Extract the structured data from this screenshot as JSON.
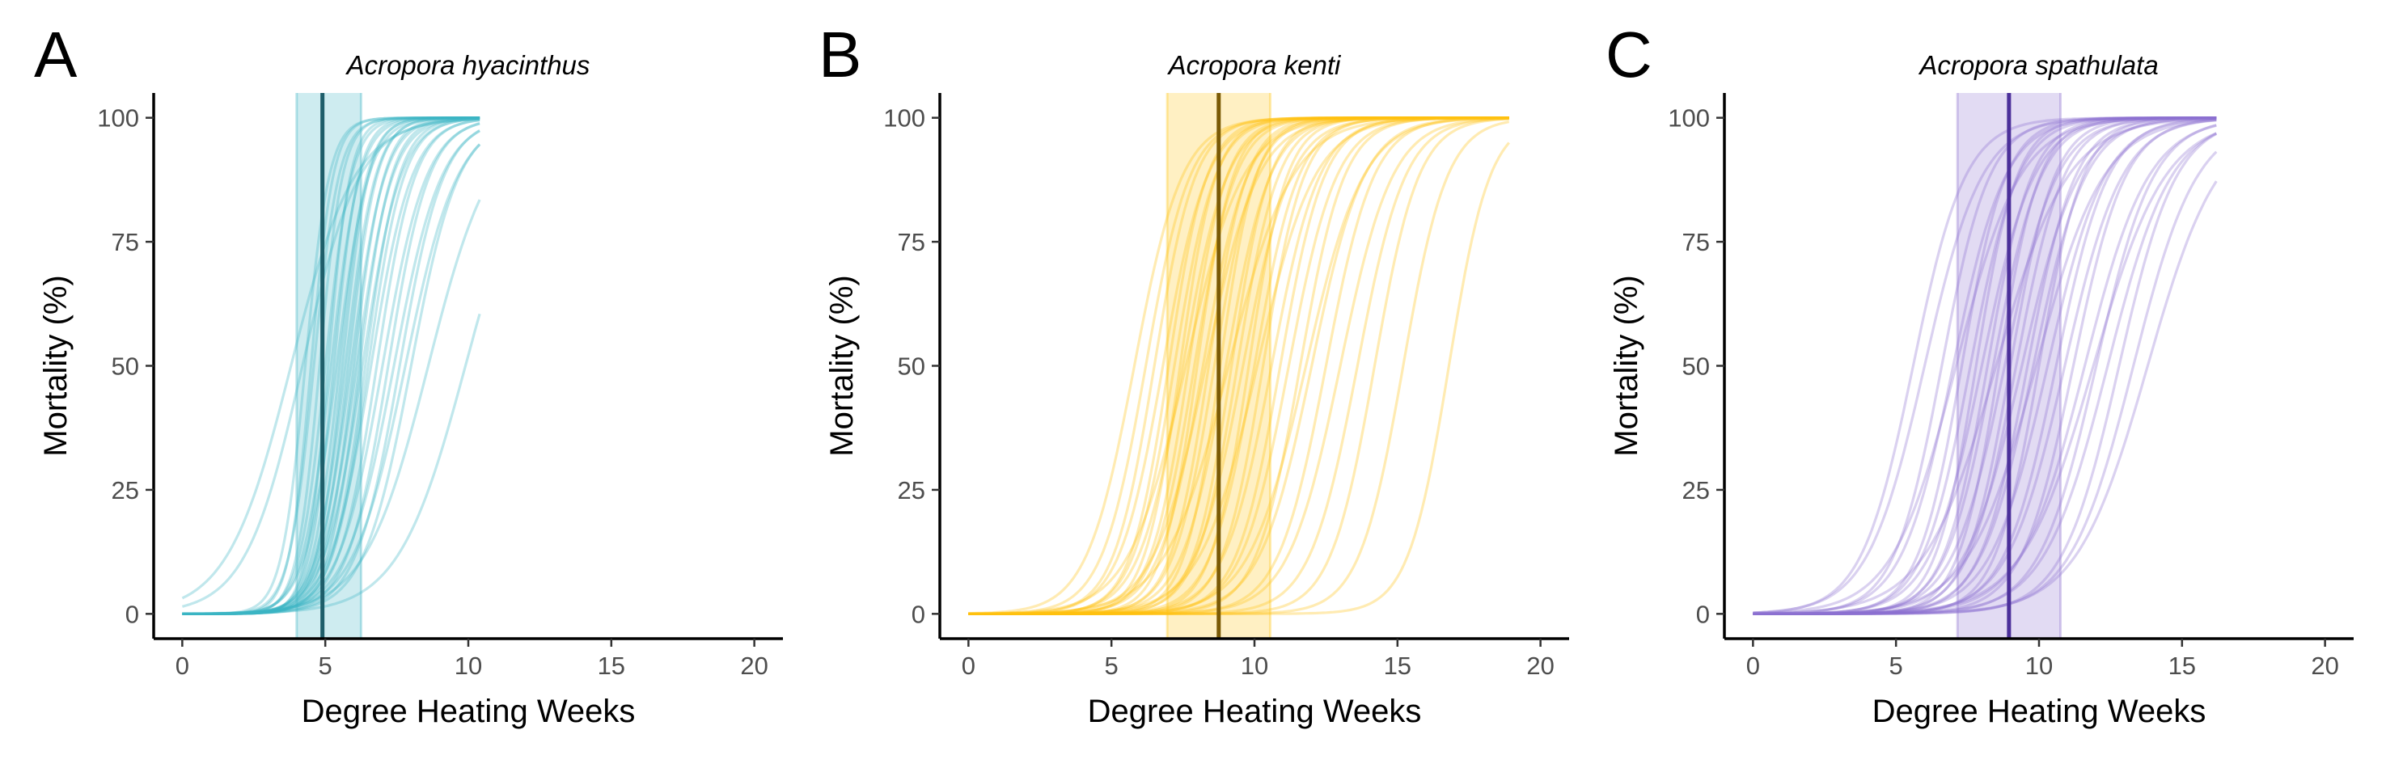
{
  "figure": {
    "xlabel": "Degree Heating Weeks",
    "ylabel": "Mortality (%)"
  },
  "chart_data": [
    {
      "type": "line",
      "panel": "A",
      "title": "Acropora hyacinthus",
      "xlabel": "Degree Heating Weeks",
      "ylabel": "Mortality (%)",
      "xlim": [
        -1,
        21
      ],
      "ylim": [
        -5,
        105
      ],
      "x_ticks": [
        0,
        5,
        10,
        15,
        20
      ],
      "y_ticks": [
        0,
        25,
        50,
        75,
        100
      ],
      "grid": false,
      "color": "#3BB3C3",
      "mean_color": "#1E5E6A",
      "mean_line_x": 4.9,
      "ci_band": [
        4.0,
        6.25
      ],
      "curve_x_range": [
        0,
        10.4
      ],
      "curves_midpoint_slope": [
        [
          4.3,
          2.4
        ],
        [
          4.5,
          2.6
        ],
        [
          4.6,
          2.3
        ],
        [
          4.8,
          2.5
        ],
        [
          5.0,
          2.2
        ],
        [
          5.1,
          2.6
        ],
        [
          5.2,
          2.0
        ],
        [
          5.3,
          2.3
        ],
        [
          5.4,
          1.8
        ],
        [
          5.5,
          2.1
        ],
        [
          5.6,
          2.2
        ],
        [
          5.7,
          1.9
        ],
        [
          5.8,
          2.0
        ],
        [
          5.9,
          1.7
        ],
        [
          6.0,
          1.9
        ],
        [
          6.1,
          1.6
        ],
        [
          6.2,
          1.8
        ],
        [
          6.3,
          1.5
        ],
        [
          6.4,
          1.7
        ],
        [
          6.5,
          1.6
        ],
        [
          6.6,
          1.4
        ],
        [
          6.8,
          1.5
        ],
        [
          7.0,
          1.3
        ],
        [
          7.2,
          1.4
        ],
        [
          7.4,
          1.2
        ],
        [
          7.6,
          1.3
        ],
        [
          7.8,
          1.1
        ],
        [
          8.0,
          1.2
        ],
        [
          4.2,
          1.0
        ],
        [
          3.8,
          0.9
        ],
        [
          8.6,
          0.9
        ],
        [
          9.9,
          0.85
        ]
      ]
    },
    {
      "type": "line",
      "panel": "B",
      "title": "Acropora kenti",
      "xlabel": "Degree Heating Weeks",
      "ylabel": "Mortality (%)",
      "xlim": [
        -1,
        21
      ],
      "ylim": [
        -5,
        105
      ],
      "x_ticks": [
        0,
        5,
        10,
        15,
        20
      ],
      "y_ticks": [
        0,
        25,
        50,
        75,
        100
      ],
      "grid": false,
      "color": "#FFC20E",
      "mean_color": "#7A5A05",
      "mean_line_x": 8.75,
      "ci_band": [
        6.95,
        10.55
      ],
      "curve_x_range": [
        0,
        18.9
      ],
      "curves_midpoint_slope": [
        [
          5.8,
          1.2
        ],
        [
          6.2,
          1.3
        ],
        [
          6.5,
          1.4
        ],
        [
          6.8,
          1.3
        ],
        [
          7.0,
          1.5
        ],
        [
          7.2,
          1.4
        ],
        [
          7.4,
          1.6
        ],
        [
          7.5,
          1.3
        ],
        [
          7.7,
          1.5
        ],
        [
          7.9,
          1.4
        ],
        [
          8.0,
          1.6
        ],
        [
          8.2,
          1.3
        ],
        [
          8.4,
          1.5
        ],
        [
          8.6,
          1.4
        ],
        [
          8.8,
          1.6
        ],
        [
          9.0,
          1.3
        ],
        [
          9.2,
          1.5
        ],
        [
          9.4,
          1.4
        ],
        [
          9.6,
          1.2
        ],
        [
          9.8,
          1.5
        ],
        [
          10.0,
          1.3
        ],
        [
          10.3,
          1.4
        ],
        [
          10.6,
          1.2
        ],
        [
          10.9,
          1.3
        ],
        [
          11.2,
          1.2
        ],
        [
          11.6,
          1.3
        ],
        [
          12.0,
          1.1
        ],
        [
          12.5,
          1.2
        ],
        [
          13.0,
          1.1
        ],
        [
          13.6,
          1.2
        ],
        [
          14.2,
          1.3
        ],
        [
          15.2,
          1.3
        ],
        [
          16.8,
          1.4
        ],
        [
          9.1,
          0.9
        ],
        [
          7.6,
          1.0
        ],
        [
          11.8,
          1.0
        ],
        [
          8.3,
          1.1
        ],
        [
          10.1,
          1.0
        ]
      ]
    },
    {
      "type": "line",
      "panel": "C",
      "title": "Acropora spathulata",
      "xlabel": "Degree Heating Weeks",
      "ylabel": "Mortality (%)",
      "xlim": [
        -1,
        21
      ],
      "ylim": [
        -5,
        105
      ],
      "x_ticks": [
        0,
        5,
        10,
        15,
        20
      ],
      "y_ticks": [
        0,
        25,
        50,
        75,
        100
      ],
      "grid": false,
      "color": "#8B6FCF",
      "mean_color": "#4B2F9A",
      "mean_line_x": 8.95,
      "ci_band": [
        7.15,
        10.75
      ],
      "curve_x_range": [
        0,
        16.2
      ],
      "curves_midpoint_slope": [
        [
          5.6,
          1.1
        ],
        [
          6.0,
          1.0
        ],
        [
          6.6,
          1.2
        ],
        [
          7.0,
          1.1
        ],
        [
          7.3,
          1.3
        ],
        [
          7.6,
          1.2
        ],
        [
          7.8,
          1.4
        ],
        [
          8.0,
          1.1
        ],
        [
          8.2,
          1.3
        ],
        [
          8.4,
          1.2
        ],
        [
          8.6,
          1.4
        ],
        [
          8.8,
          1.1
        ],
        [
          9.0,
          1.3
        ],
        [
          9.2,
          1.2
        ],
        [
          9.4,
          1.0
        ],
        [
          9.6,
          1.2
        ],
        [
          9.8,
          1.1
        ],
        [
          10.0,
          1.3
        ],
        [
          10.3,
          1.0
        ],
        [
          10.6,
          1.1
        ],
        [
          10.9,
          1.0
        ],
        [
          11.2,
          1.1
        ],
        [
          11.6,
          0.9
        ],
        [
          12.0,
          1.0
        ],
        [
          12.4,
          0.9
        ],
        [
          12.8,
          1.0
        ],
        [
          13.3,
          0.9
        ],
        [
          13.8,
          0.8
        ],
        [
          8.5,
          0.8
        ],
        [
          7.1,
          0.9
        ],
        [
          9.9,
          0.85
        ],
        [
          11.9,
          0.8
        ]
      ]
    }
  ]
}
